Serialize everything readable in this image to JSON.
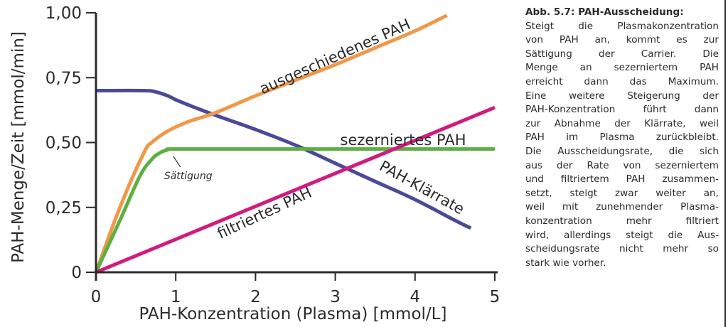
{
  "chart_data": {
    "type": "line",
    "xlabel": "PAH-Konzentration (Plasma) [mmol/L]",
    "ylabel": "PAH-Menge/Zeit [mmol/min]",
    "xlim": [
      0,
      5
    ],
    "ylim": [
      0,
      1.0
    ],
    "x_ticks": [
      0,
      1,
      2,
      3,
      4,
      5
    ],
    "x_tick_labels": [
      "0",
      "1",
      "2",
      "3",
      "4",
      "5"
    ],
    "y_ticks": [
      0,
      0.25,
      0.5,
      0.75,
      1.0
    ],
    "y_tick_labels": [
      "0",
      "0,25",
      "0,50",
      "0,75",
      "1,00"
    ],
    "grid": false,
    "legend": "none",
    "series": [
      {
        "name": "ausgeschiedenes PAH",
        "color": "#f0984a",
        "x": [
          0,
          0.3,
          0.6,
          0.7,
          0.85,
          1.0,
          1.2,
          1.5,
          2.0,
          2.5,
          3.0,
          3.5,
          4.0,
          4.4
        ],
        "y": [
          0,
          0.25,
          0.46,
          0.5,
          0.535,
          0.56,
          0.585,
          0.615,
          0.68,
          0.74,
          0.8,
          0.865,
          0.93,
          0.99
        ]
      },
      {
        "name": "sezerniertes PAH",
        "color": "#5cb043",
        "x": [
          0,
          0.3,
          0.55,
          0.7,
          0.8,
          0.9,
          1.0,
          2.0,
          3.0,
          4.0,
          5.0
        ],
        "y": [
          0,
          0.2,
          0.37,
          0.435,
          0.46,
          0.472,
          0.475,
          0.475,
          0.475,
          0.475,
          0.475
        ]
      },
      {
        "name": "filtriertes PAH",
        "color": "#d11b7e",
        "x": [
          0,
          5
        ],
        "y": [
          0,
          0.635
        ]
      },
      {
        "name": "PAH-Klärrate",
        "color": "#4a4a98",
        "x": [
          0,
          0.6,
          0.75,
          0.9,
          1.0,
          1.2,
          1.5,
          2.0,
          2.5,
          3.0,
          3.5,
          4.0,
          4.5,
          4.7
        ],
        "y": [
          0.7,
          0.7,
          0.695,
          0.68,
          0.665,
          0.64,
          0.605,
          0.55,
          0.49,
          0.42,
          0.35,
          0.28,
          0.2,
          0.17
        ]
      }
    ],
    "annotations": [
      {
        "text": "Sättigung",
        "x": 0.97,
        "y": 0.455
      }
    ]
  },
  "caption": {
    "title": "Abb. 5.7: PAH-Ausscheidung:",
    "lines": [
      "Steigt die Plasmakonzentration",
      "von PAH an, kommt es zur",
      "Sättigung der Carrier. Die",
      "Menge an sezerniertem PAH",
      "erreicht dann das Maximum.",
      "Eine weitere Steigerung der",
      "PAH-Konzentration führt dann",
      "zur Abnahme der Klärrate, weil",
      "PAH im Plasma zurückbleibt.",
      "Die Ausscheidungsrate, die sich",
      "aus der Rate von sezerniertem",
      "und filtriertem PAH zusammen-",
      "setzt, steigt zwar weiter an,",
      "weil mit zunehmender Plasma-",
      "konzentration mehr filtriert",
      "wird, allerdings steigt die Aus-",
      "scheidungsrate nicht mehr so",
      "stark wie vorher."
    ]
  }
}
